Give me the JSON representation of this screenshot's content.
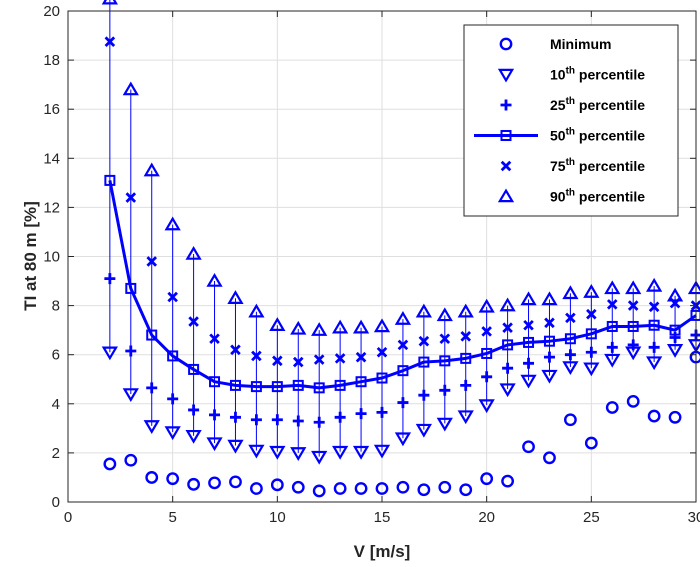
{
  "chart_data": {
    "type": "scatter",
    "xlabel": "V [m/s]",
    "ylabel": "TI at 80 m [%]",
    "xlim": [
      0,
      30
    ],
    "ylim": [
      0,
      20
    ],
    "xticks": [
      0,
      5,
      10,
      15,
      20,
      25,
      30
    ],
    "yticks": [
      0,
      2,
      4,
      6,
      8,
      10,
      12,
      14,
      16,
      18,
      20
    ],
    "grid": true,
    "legend_position": "top-right",
    "color": "#0000ff",
    "x": [
      2,
      3,
      4,
      5,
      6,
      7,
      8,
      9,
      10,
      11,
      12,
      13,
      14,
      15,
      16,
      17,
      18,
      19,
      20,
      21,
      22,
      23,
      24,
      25,
      26,
      27,
      28,
      29,
      30
    ],
    "whisker": {
      "from": "10th percentile",
      "to": "90th percentile"
    },
    "series": [
      {
        "name": "Minimum",
        "sup": "",
        "marker": "circle",
        "line": false,
        "values": [
          1.55,
          1.7,
          1.0,
          0.95,
          0.72,
          0.78,
          0.82,
          0.55,
          0.7,
          0.6,
          0.45,
          0.55,
          0.55,
          0.55,
          0.6,
          0.5,
          0.6,
          0.5,
          0.95,
          0.85,
          2.25,
          1.8,
          3.35,
          2.4,
          3.85,
          4.1,
          3.5,
          3.45,
          5.9
        ]
      },
      {
        "name": "10",
        "sup": "th",
        "suffix": " percentile",
        "marker": "triangle-down",
        "line": false,
        "values": [
          6.1,
          4.4,
          3.1,
          2.85,
          2.7,
          2.4,
          2.3,
          2.1,
          2.05,
          2.0,
          1.85,
          2.05,
          2.05,
          2.1,
          2.6,
          2.95,
          3.2,
          3.5,
          3.95,
          4.6,
          4.95,
          5.15,
          5.5,
          5.45,
          5.8,
          6.1,
          5.7,
          6.2,
          6.4
        ]
      },
      {
        "name": "25",
        "sup": "th",
        "suffix": " percentile",
        "marker": "plus",
        "line": false,
        "values": [
          9.1,
          6.15,
          4.65,
          4.2,
          3.75,
          3.55,
          3.45,
          3.35,
          3.35,
          3.3,
          3.25,
          3.45,
          3.6,
          3.65,
          4.05,
          4.35,
          4.55,
          4.75,
          5.1,
          5.45,
          5.65,
          5.9,
          6.0,
          6.1,
          6.3,
          6.4,
          6.3,
          6.7,
          6.8
        ]
      },
      {
        "name": "50",
        "sup": "th",
        "suffix": " percentile",
        "marker": "square",
        "line": true,
        "values": [
          13.1,
          8.7,
          6.8,
          5.95,
          5.4,
          4.9,
          4.75,
          4.7,
          4.7,
          4.75,
          4.65,
          4.75,
          4.9,
          5.05,
          5.35,
          5.7,
          5.75,
          5.85,
          6.05,
          6.4,
          6.5,
          6.55,
          6.65,
          6.85,
          7.15,
          7.15,
          7.2,
          7.0,
          7.6
        ]
      },
      {
        "name": "75",
        "sup": "th",
        "suffix": " percentile",
        "marker": "x",
        "line": false,
        "values": [
          18.75,
          12.4,
          9.8,
          8.35,
          7.35,
          6.65,
          6.2,
          5.95,
          5.75,
          5.7,
          5.8,
          5.85,
          5.9,
          6.1,
          6.4,
          6.55,
          6.65,
          6.75,
          6.95,
          7.1,
          7.2,
          7.3,
          7.5,
          7.65,
          8.05,
          8.0,
          7.95,
          8.1,
          8.0
        ]
      },
      {
        "name": "90",
        "sup": "th",
        "suffix": " percentile",
        "marker": "triangle-up",
        "line": false,
        "values": [
          20.5,
          16.8,
          13.5,
          11.3,
          10.1,
          9.0,
          8.3,
          7.75,
          7.2,
          7.05,
          7.0,
          7.1,
          7.1,
          7.15,
          7.45,
          7.75,
          7.6,
          7.75,
          7.95,
          8.0,
          8.25,
          8.25,
          8.5,
          8.55,
          8.7,
          8.7,
          8.8,
          8.4,
          8.7
        ]
      }
    ]
  }
}
